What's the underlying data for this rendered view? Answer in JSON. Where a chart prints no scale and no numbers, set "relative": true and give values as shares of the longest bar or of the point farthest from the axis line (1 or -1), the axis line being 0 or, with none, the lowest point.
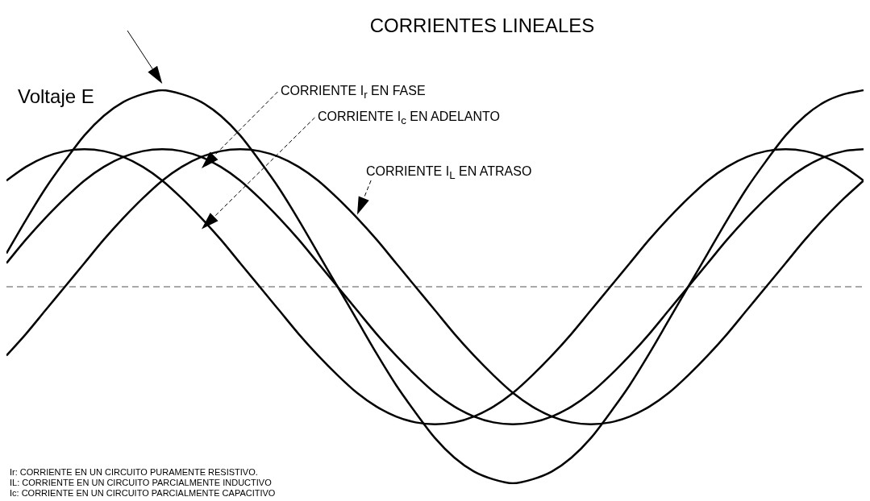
{
  "chart_data": {
    "type": "line",
    "title": "CORRIENTES LINEALES",
    "relative": true,
    "categories": [
      null,
      null,
      null,
      null,
      null,
      null,
      null,
      null,
      null,
      null,
      null,
      null,
      null,
      null,
      null,
      null,
      null,
      null,
      null,
      null,
      null,
      null,
      null,
      null,
      null,
      null,
      null,
      null,
      null,
      null,
      null,
      null,
      null,
      null,
      null,
      null,
      null,
      null,
      null,
      null,
      null,
      null,
      null,
      null,
      null
    ],
    "series": [
      {
        "name": "Voltaje E",
        "color": "#000000",
        "values": [
          0.17,
          0.34,
          0.5,
          0.64,
          0.77,
          0.87,
          0.94,
          0.98,
          1,
          0.98,
          0.94,
          0.87,
          0.77,
          0.64,
          0.5,
          0.34,
          0.17,
          0,
          -0.17,
          -0.34,
          -0.5,
          -0.64,
          -0.77,
          -0.87,
          -0.94,
          -0.98,
          -1,
          -0.98,
          -0.94,
          -0.87,
          -0.77,
          -0.64,
          -0.5,
          -0.34,
          -0.17,
          0,
          0.17,
          0.34,
          0.5,
          0.64,
          0.77,
          0.87,
          0.94,
          0.98,
          1
        ]
      },
      {
        "name": "CORRIENTE I$_{r}$ EN FASE",
        "color": "#000000",
        "values": [
          0.12,
          0.24,
          0.35,
          0.45,
          0.54,
          0.61,
          0.66,
          0.69,
          0.7,
          0.69,
          0.66,
          0.61,
          0.54,
          0.45,
          0.35,
          0.24,
          0.12,
          0,
          -0.12,
          -0.24,
          -0.35,
          -0.45,
          -0.54,
          -0.61,
          -0.66,
          -0.69,
          -0.7,
          -0.69,
          -0.66,
          -0.61,
          -0.54,
          -0.45,
          -0.35,
          -0.24,
          -0.12,
          0,
          0.12,
          0.24,
          0.35,
          0.45,
          0.54,
          0.61,
          0.66,
          0.69,
          0.7
        ]
      },
      {
        "name": "CORRIENTE I$_{c}$ EN ADELANTO",
        "color": "#000000",
        "values": [
          0.54,
          0.61,
          0.66,
          0.69,
          0.7,
          0.69,
          0.66,
          0.61,
          0.54,
          0.45,
          0.35,
          0.24,
          0.12,
          0,
          -0.12,
          -0.24,
          -0.35,
          -0.45,
          -0.54,
          -0.61,
          -0.66,
          -0.69,
          -0.7,
          -0.69,
          -0.66,
          -0.61,
          -0.54,
          -0.45,
          -0.35,
          -0.24,
          -0.12,
          0,
          0.12,
          0.24,
          0.35,
          0.45,
          0.54,
          0.61,
          0.66,
          0.69,
          0.7,
          0.69,
          0.66,
          0.61,
          0.54
        ]
      },
      {
        "name": "CORRIENTE I$_{L}$ EN ATRASO",
        "color": "#000000",
        "values": [
          -0.35,
          -0.24,
          -0.12,
          0,
          0.12,
          0.24,
          0.35,
          0.45,
          0.54,
          0.61,
          0.66,
          0.69,
          0.7,
          0.69,
          0.66,
          0.61,
          0.54,
          0.45,
          0.35,
          0.24,
          0.12,
          0,
          -0.12,
          -0.24,
          -0.35,
          -0.45,
          -0.54,
          -0.61,
          -0.66,
          -0.69,
          -0.7,
          -0.69,
          -0.66,
          -0.61,
          -0.54,
          -0.45,
          -0.35,
          -0.24,
          -0.12,
          0,
          0.12,
          0.24,
          0.35,
          0.45,
          0.54
        ]
      }
    ],
    "ref_lines": [
      {
        "axis": "y",
        "value": 0,
        "color": "#555555",
        "line_style": "dashed"
      }
    ],
    "annotations": [
      "Ir: CORRIENTE EN UN CIRCUITO PURAMENTE RESISTIVO.",
      "IL: CORRIENTE EN UN CIRCUITO PARCIALMENTE INDUCTIVO",
      "Ic: CORRIENTE EN UN CIRCUITO PARCIALMENTE CAPACITIVO"
    ],
    "legend": false,
    "grid": false,
    "marker": "none",
    "line_style": "solid"
  }
}
